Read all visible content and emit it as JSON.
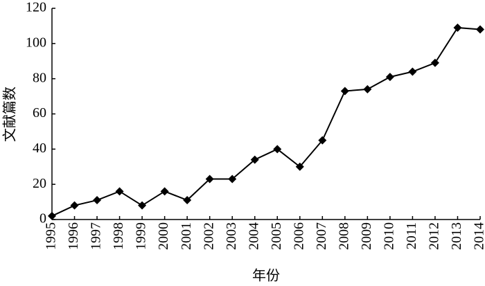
{
  "chart_data": {
    "type": "line",
    "xlabel": "年份",
    "ylabel": "文献篇数",
    "x": [
      1995,
      1996,
      1997,
      1998,
      1999,
      2000,
      2001,
      2002,
      2003,
      2004,
      2005,
      2006,
      2007,
      2008,
      2009,
      2010,
      2011,
      2012,
      2013,
      2014
    ],
    "values": [
      2,
      8,
      11,
      16,
      8,
      16,
      11,
      23,
      23,
      34,
      40,
      30,
      45,
      73,
      74,
      81,
      84,
      89,
      109,
      108
    ],
    "color": "#000000",
    "xlim": [
      1995,
      2014
    ],
    "xticks": [
      1995,
      1996,
      1997,
      1998,
      1999,
      2000,
      2001,
      2002,
      2003,
      2004,
      2005,
      2006,
      2007,
      2008,
      2009,
      2010,
      2011,
      2012,
      2013,
      2014
    ],
    "ylim": [
      0,
      120
    ],
    "yticks": [
      0,
      20,
      40,
      60,
      80,
      100,
      120
    ],
    "grid": false
  }
}
